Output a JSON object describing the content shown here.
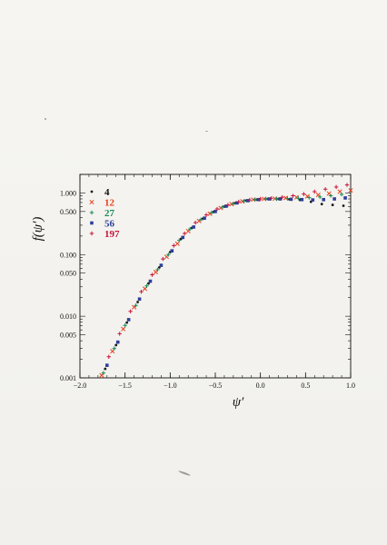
{
  "colors": {
    "page": "#f4f3ef",
    "axis": "#111111"
  },
  "chart_data": {
    "type": "scatter",
    "title": "",
    "xlabel": "ψ′",
    "ylabel": "f(ψ′)",
    "xlim": [
      -2.0,
      1.0
    ],
    "ylim": [
      0.001,
      2.0
    ],
    "yscale": "log",
    "grid": false,
    "legend_position": "top-left",
    "x_ticks": [
      {
        "value": -2.0,
        "label": "−2.0"
      },
      {
        "value": -1.5,
        "label": "−1.5"
      },
      {
        "value": -1.0,
        "label": "−1.0"
      },
      {
        "value": -0.5,
        "label": "−0.5"
      },
      {
        "value": 0.0,
        "label": "0.0"
      },
      {
        "value": 0.5,
        "label": "0.5"
      },
      {
        "value": 1.0,
        "label": "1.0"
      }
    ],
    "y_ticks": [
      {
        "value": 1.0,
        "label": "1.000"
      },
      {
        "value": 0.5,
        "label": "0.500"
      },
      {
        "value": 0.1,
        "label": "0.100"
      },
      {
        "value": 0.05,
        "label": "0.050"
      },
      {
        "value": 0.01,
        "label": "0.010"
      },
      {
        "value": 0.005,
        "label": "0.005"
      },
      {
        "value": 0.001,
        "label": "0.001"
      }
    ],
    "series": [
      {
        "name": "4",
        "color": "#1a1a1a",
        "marker": "dot",
        "x": [
          -1.72,
          -1.6,
          -1.48,
          -1.36,
          -1.24,
          -1.12,
          -1.0,
          -0.88,
          -0.76,
          -0.64,
          -0.52,
          -0.4,
          -0.28,
          -0.16,
          -0.04,
          0.08,
          0.2,
          0.32,
          0.44,
          0.56,
          0.68,
          0.8,
          0.92
        ],
        "y": [
          0.0014,
          0.0034,
          0.0079,
          0.017,
          0.034,
          0.062,
          0.11,
          0.18,
          0.27,
          0.38,
          0.49,
          0.6,
          0.68,
          0.75,
          0.78,
          0.8,
          0.8,
          0.79,
          0.77,
          0.72,
          0.66,
          0.64,
          0.62
        ]
      },
      {
        "name": "12",
        "color": "#e8401c",
        "marker": "x",
        "x": [
          -1.76,
          -1.64,
          -1.52,
          -1.4,
          -1.28,
          -1.16,
          -1.04,
          -0.92,
          -0.8,
          -0.68,
          -0.56,
          -0.44,
          -0.32,
          -0.2,
          -0.08,
          0.04,
          0.16,
          0.28,
          0.4,
          0.52,
          0.64,
          0.76,
          0.88,
          1.0
        ],
        "y": [
          0.0011,
          0.0027,
          0.0062,
          0.014,
          0.028,
          0.052,
          0.092,
          0.15,
          0.24,
          0.35,
          0.46,
          0.57,
          0.66,
          0.73,
          0.78,
          0.8,
          0.81,
          0.83,
          0.85,
          0.88,
          0.93,
          0.98,
          1.05,
          1.1
        ]
      },
      {
        "name": "27",
        "color": "#1a8a5a",
        "marker": "plus",
        "x": [
          -1.74,
          -1.62,
          -1.5,
          -1.38,
          -1.26,
          -1.14,
          -1.02,
          -0.9,
          -0.78,
          -0.66,
          -0.54,
          -0.42,
          -0.3,
          -0.18,
          -0.06,
          0.06,
          0.18,
          0.3,
          0.42,
          0.54,
          0.66,
          0.78,
          0.9
        ],
        "y": [
          0.0012,
          0.003,
          0.0071,
          0.015,
          0.031,
          0.057,
          0.1,
          0.17,
          0.26,
          0.37,
          0.48,
          0.59,
          0.67,
          0.74,
          0.78,
          0.8,
          0.8,
          0.81,
          0.82,
          0.84,
          0.86,
          0.9,
          0.95
        ]
      },
      {
        "name": "56",
        "color": "#2d3e9a",
        "marker": "square",
        "x": [
          -1.7,
          -1.58,
          -1.46,
          -1.34,
          -1.22,
          -1.1,
          -0.98,
          -0.86,
          -0.74,
          -0.62,
          -0.5,
          -0.38,
          -0.26,
          -0.14,
          -0.02,
          0.1,
          0.22,
          0.34,
          0.46,
          0.58,
          0.7,
          0.82,
          0.94
        ],
        "y": [
          0.0016,
          0.0038,
          0.0088,
          0.019,
          0.037,
          0.067,
          0.115,
          0.19,
          0.28,
          0.39,
          0.5,
          0.61,
          0.69,
          0.75,
          0.78,
          0.8,
          0.8,
          0.79,
          0.78,
          0.77,
          0.78,
          0.8,
          0.83
        ]
      },
      {
        "name": "197",
        "color": "#c8143c",
        "marker": "plus",
        "x": [
          -1.8,
          -1.68,
          -1.56,
          -1.44,
          -1.32,
          -1.2,
          -1.08,
          -0.96,
          -0.84,
          -0.72,
          -0.6,
          -0.48,
          -0.36,
          -0.24,
          -0.12,
          0.0,
          0.12,
          0.24,
          0.36,
          0.48,
          0.6,
          0.72,
          0.84,
          0.96
        ],
        "y": [
          0.0009,
          0.0022,
          0.0052,
          0.012,
          0.025,
          0.047,
          0.085,
          0.14,
          0.22,
          0.33,
          0.44,
          0.55,
          0.64,
          0.72,
          0.77,
          0.8,
          0.82,
          0.85,
          0.9,
          0.96,
          1.05,
          1.15,
          1.25,
          1.35
        ]
      }
    ]
  }
}
